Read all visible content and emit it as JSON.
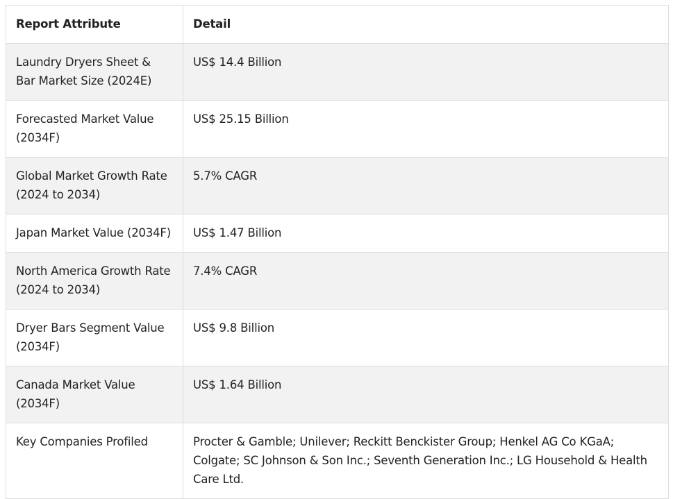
{
  "table": {
    "headers": {
      "attribute": "Report Attribute",
      "detail": "Detail"
    },
    "rows": [
      {
        "attribute": "Laundry Dryers Sheet & Bar Market Size (2024E)",
        "detail": "US$ 14.4 Billion"
      },
      {
        "attribute": "Forecasted Market Value (2034F)",
        "detail": "US$ 25.15 Billion"
      },
      {
        "attribute": "Global Market Growth Rate (2024 to 2034)",
        "detail": "5.7% CAGR"
      },
      {
        "attribute": "Japan Market Value (2034F)",
        "detail": "US$ 1.47 Billion"
      },
      {
        "attribute": "North America Growth Rate (2024 to 2034)",
        "detail": "7.4% CAGR"
      },
      {
        "attribute": "Dryer Bars Segment Value (2034F)",
        "detail": "US$ 9.8 Billion"
      },
      {
        "attribute": "Canada Market Value (2034F)",
        "detail": "US$ 1.64 Billion"
      },
      {
        "attribute": "Key Companies Profiled",
        "detail": "Procter & Gamble; Unilever; Reckitt Benckister Group; Henkel AG Co KGaA; Colgate; SC Johnson & Son Inc.; Seventh Generation Inc.; LG Household & Health Care Ltd."
      }
    ]
  }
}
